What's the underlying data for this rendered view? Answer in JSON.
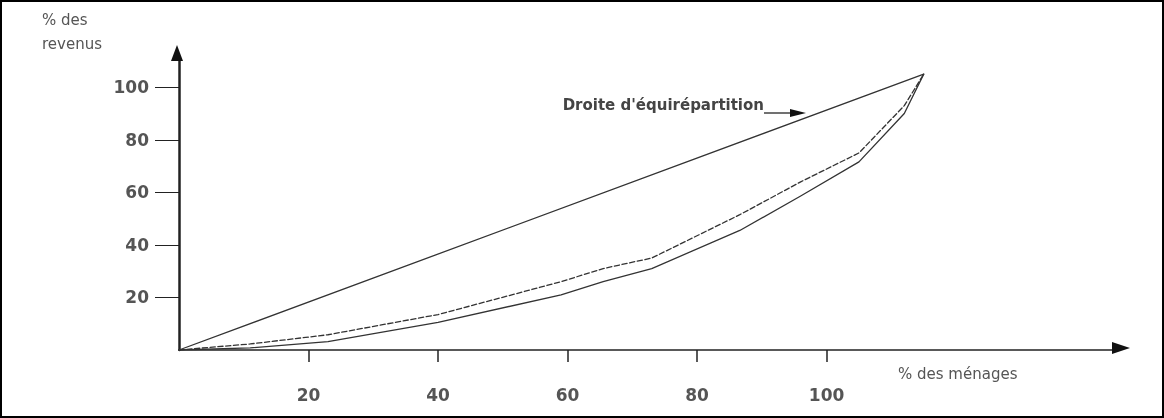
{
  "chart_data": {
    "type": "line",
    "xlabel": "% des ménages",
    "ylabel": "% des revenus",
    "xlim": [
      0,
      145
    ],
    "ylim": [
      0,
      110
    ],
    "xticks": [
      20,
      40,
      60,
      80,
      100
    ],
    "yticks": [
      20,
      40,
      60,
      80,
      100
    ],
    "grid": false,
    "marker": "none",
    "series": [
      {
        "color": "#333333",
        "line_style": "solid",
        "x": [
          0,
          115
        ],
        "values": [
          0,
          105
        ]
      },
      {
        "color": "#333333",
        "line_style": "dashed",
        "x": [
          0,
          11,
          23,
          40,
          59,
          65.5,
          73,
          86.6,
          96,
          105,
          112,
          115
        ],
        "values": [
          0,
          2.3,
          5.8,
          13.5,
          26,
          31,
          35,
          51.5,
          64,
          75,
          93,
          105
        ]
      },
      {
        "color": "#333333",
        "line_style": "solid",
        "x": [
          0,
          11,
          23,
          40,
          59,
          65.5,
          73,
          86.6,
          96,
          105,
          112,
          115
        ],
        "values": [
          0,
          0.8,
          3.2,
          10.5,
          21,
          26,
          31,
          45.5,
          58.6,
          71.6,
          90,
          105
        ]
      }
    ],
    "annotations": [
      "Droite d'équirépartition"
    ]
  }
}
